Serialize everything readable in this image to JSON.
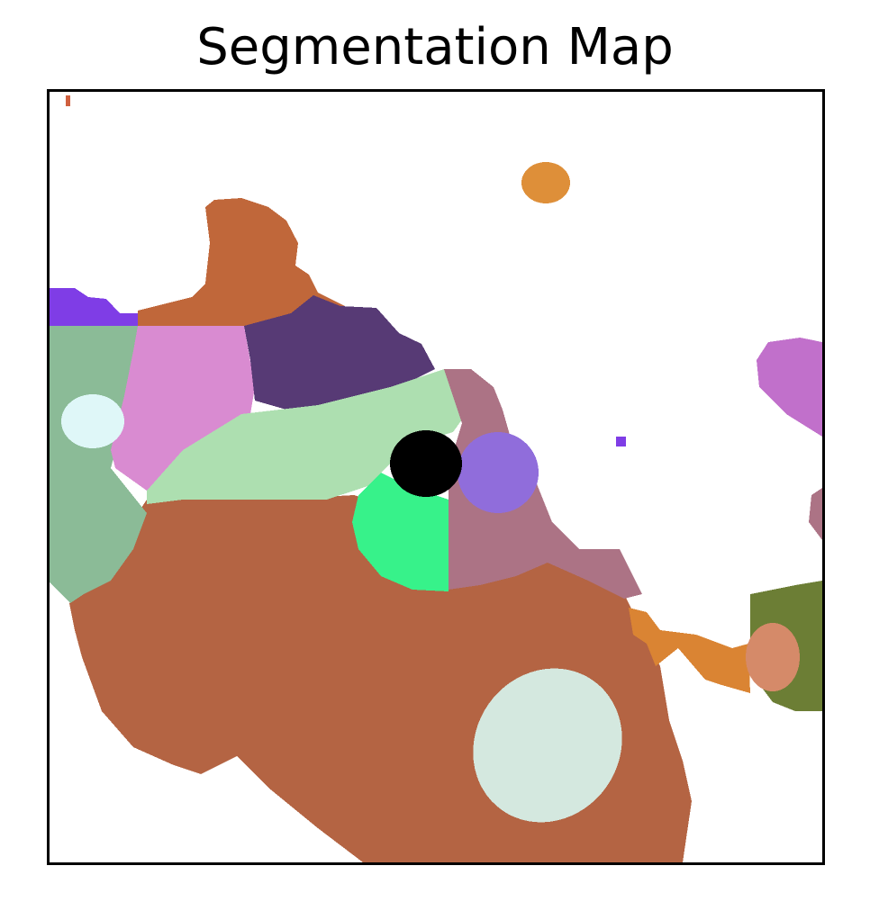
{
  "title": "Segmentation Map",
  "colors": {
    "background": "#ffffff",
    "brown_main": "#b46443",
    "brown_top": "#c0673a",
    "purple_dark": "#573a75",
    "pink": "#d98bd1",
    "sage": "#8bbb97",
    "light_green": "#addfb0",
    "black_blob": "#000000",
    "bright_green": "#37f28a",
    "mauve": "#ac7385",
    "lavender": "#906ddb",
    "violet": "#7f3de6",
    "orange": "#de8f39",
    "orange_dark": "#da8433",
    "magenta": "#c170cb",
    "olive": "#6c7e35",
    "salmon": "#d58a69",
    "pale_green": "#d4e8df",
    "pale_cyan": "#dff7f8",
    "red_speck": "#d0603f"
  }
}
